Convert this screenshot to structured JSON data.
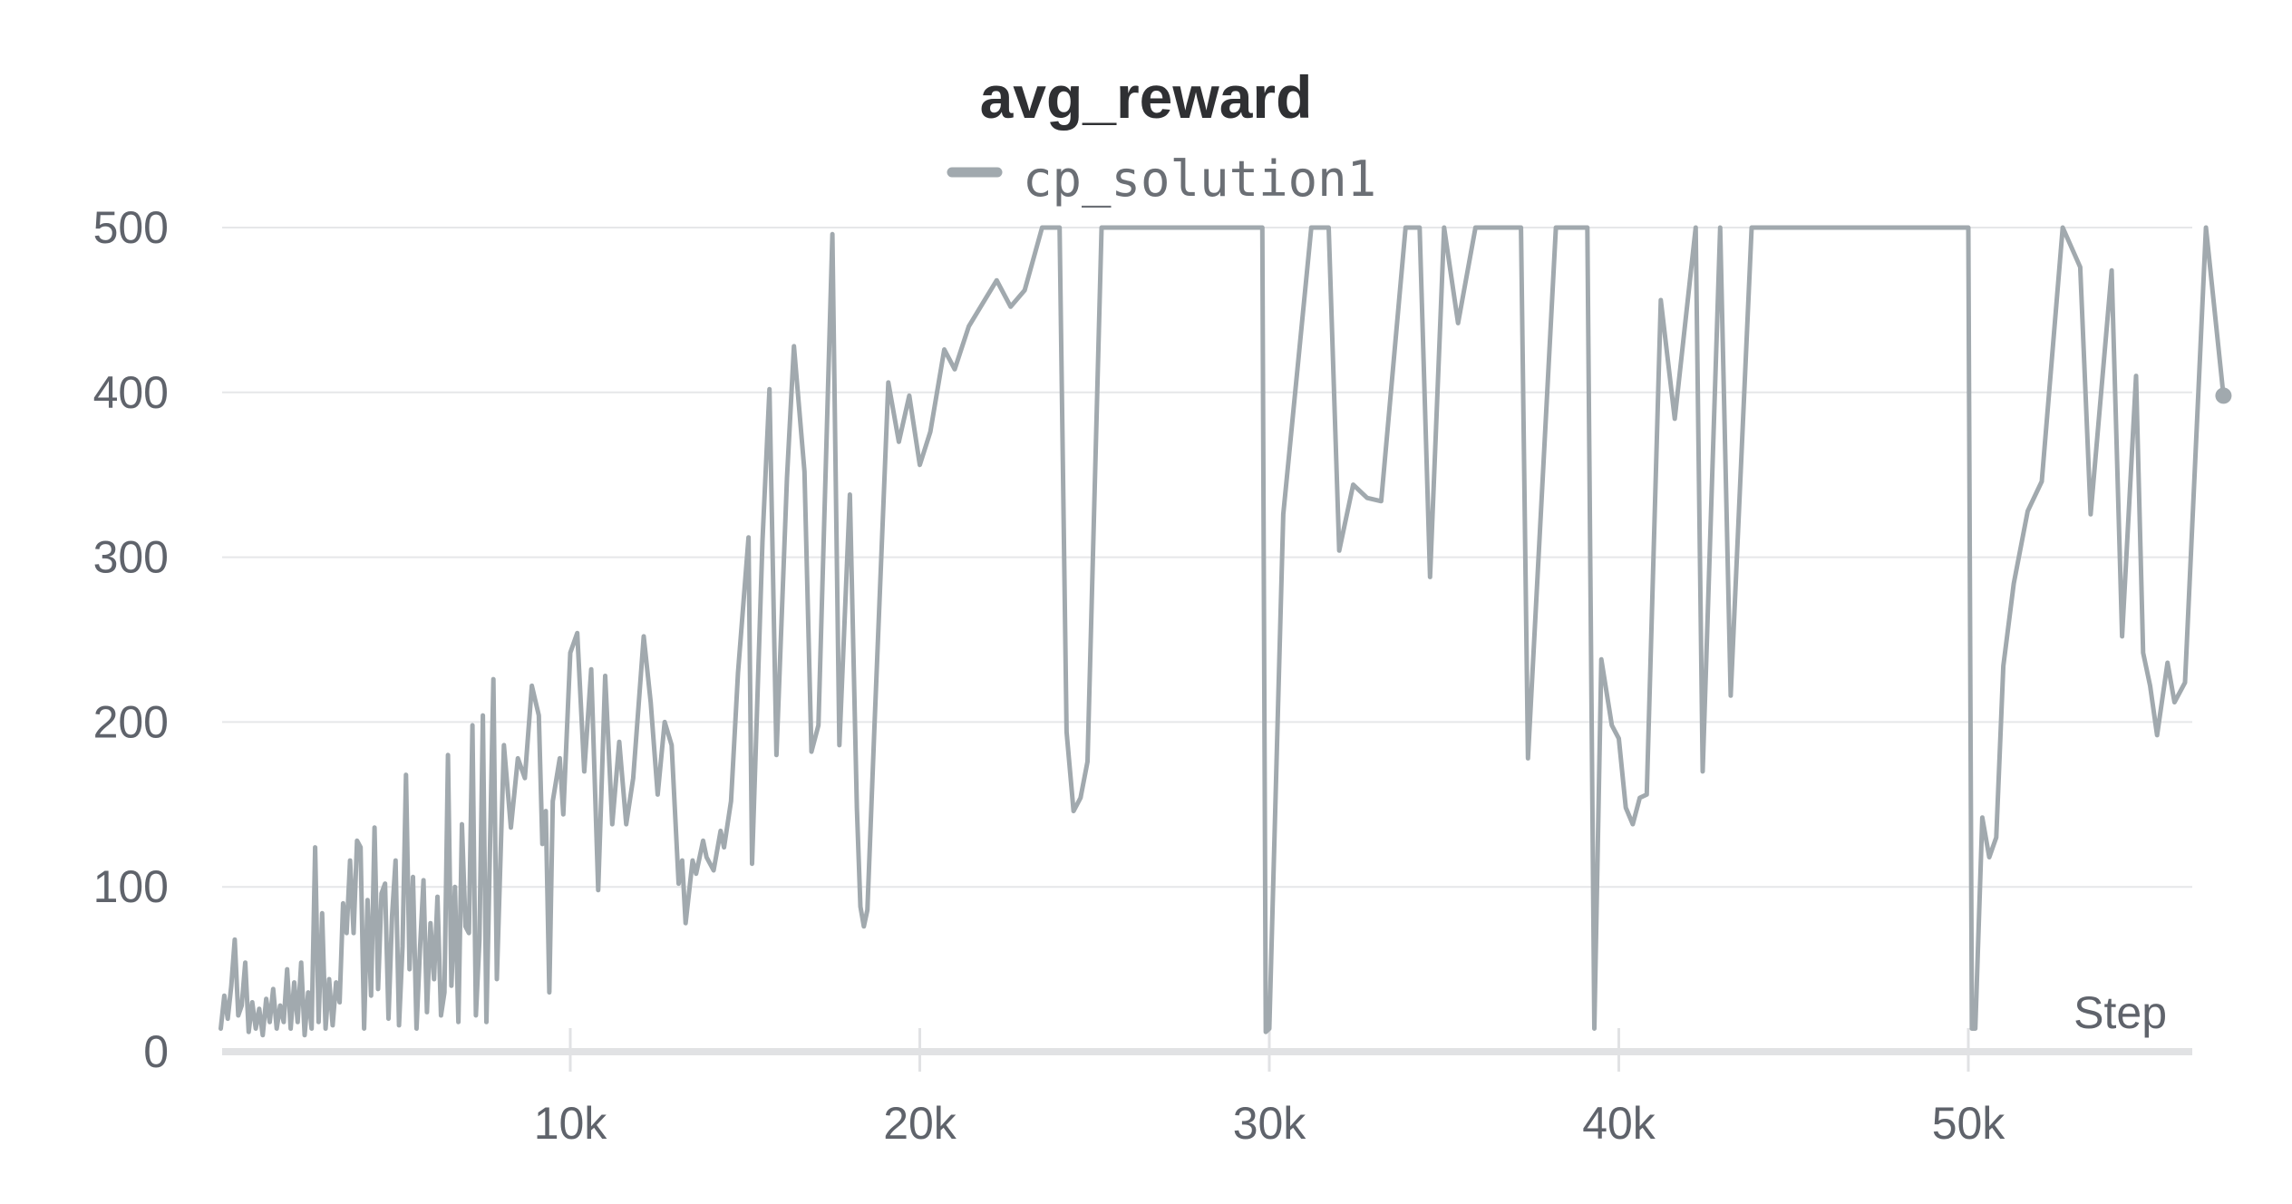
{
  "chart_data": {
    "type": "line",
    "title": "avg_reward",
    "xlabel": "Step",
    "ylabel": "",
    "xlim": [
      0,
      56500
    ],
    "ylim": [
      0,
      500
    ],
    "x_ticks": [
      10000,
      20000,
      30000,
      40000,
      50000
    ],
    "x_tick_labels": [
      "10k",
      "20k",
      "30k",
      "40k",
      "50k"
    ],
    "y_ticks": [
      0,
      100,
      200,
      300,
      400,
      500
    ],
    "y_tick_labels": [
      "0",
      "100",
      "200",
      "300",
      "400",
      "500"
    ],
    "grid": true,
    "legend_position": "top-center",
    "colors": {
      "series": "#a1a9ae",
      "grid": "#e6e7e9",
      "axis": "#e1e2e4",
      "tick_text": "#5f636b",
      "title": "#2f3033"
    },
    "series": [
      {
        "name": "cp_solution1",
        "points": [
          [
            0,
            14
          ],
          [
            100,
            34
          ],
          [
            200,
            20
          ],
          [
            300,
            40
          ],
          [
            400,
            68
          ],
          [
            500,
            22
          ],
          [
            600,
            28
          ],
          [
            700,
            54
          ],
          [
            800,
            12
          ],
          [
            900,
            30
          ],
          [
            1000,
            14
          ],
          [
            1100,
            26
          ],
          [
            1200,
            10
          ],
          [
            1300,
            32
          ],
          [
            1400,
            18
          ],
          [
            1500,
            38
          ],
          [
            1600,
            14
          ],
          [
            1700,
            28
          ],
          [
            1800,
            18
          ],
          [
            1900,
            50
          ],
          [
            2000,
            14
          ],
          [
            2100,
            42
          ],
          [
            2200,
            18
          ],
          [
            2300,
            54
          ],
          [
            2400,
            10
          ],
          [
            2500,
            36
          ],
          [
            2600,
            14
          ],
          [
            2700,
            124
          ],
          [
            2800,
            18
          ],
          [
            2900,
            84
          ],
          [
            3000,
            14
          ],
          [
            3100,
            44
          ],
          [
            3200,
            16
          ],
          [
            3300,
            42
          ],
          [
            3400,
            30
          ],
          [
            3500,
            90
          ],
          [
            3600,
            72
          ],
          [
            3700,
            116
          ],
          [
            3800,
            72
          ],
          [
            3900,
            128
          ],
          [
            4000,
            124
          ],
          [
            4100,
            14
          ],
          [
            4200,
            92
          ],
          [
            4300,
            34
          ],
          [
            4400,
            136
          ],
          [
            4500,
            38
          ],
          [
            4600,
            96
          ],
          [
            4700,
            102
          ],
          [
            4800,
            20
          ],
          [
            4900,
            82
          ],
          [
            5000,
            116
          ],
          [
            5100,
            16
          ],
          [
            5200,
            64
          ],
          [
            5300,
            168
          ],
          [
            5400,
            50
          ],
          [
            5500,
            106
          ],
          [
            5600,
            14
          ],
          [
            5700,
            62
          ],
          [
            5800,
            104
          ],
          [
            5900,
            24
          ],
          [
            6000,
            78
          ],
          [
            6100,
            44
          ],
          [
            6200,
            94
          ],
          [
            6300,
            22
          ],
          [
            6400,
            36
          ],
          [
            6500,
            180
          ],
          [
            6600,
            40
          ],
          [
            6700,
            100
          ],
          [
            6800,
            18
          ],
          [
            6900,
            138
          ],
          [
            7000,
            76
          ],
          [
            7100,
            72
          ],
          [
            7200,
            198
          ],
          [
            7300,
            22
          ],
          [
            7400,
            68
          ],
          [
            7500,
            204
          ],
          [
            7600,
            18
          ],
          [
            7700,
            120
          ],
          [
            7800,
            226
          ],
          [
            7900,
            44
          ],
          [
            8100,
            186
          ],
          [
            8300,
            136
          ],
          [
            8500,
            178
          ],
          [
            8700,
            166
          ],
          [
            8900,
            222
          ],
          [
            9100,
            204
          ],
          [
            9200,
            126
          ],
          [
            9300,
            146
          ],
          [
            9400,
            36
          ],
          [
            9500,
            152
          ],
          [
            9700,
            178
          ],
          [
            9800,
            144
          ],
          [
            10000,
            242
          ],
          [
            10200,
            254
          ],
          [
            10400,
            170
          ],
          [
            10600,
            232
          ],
          [
            10800,
            98
          ],
          [
            11000,
            228
          ],
          [
            11200,
            138
          ],
          [
            11400,
            188
          ],
          [
            11600,
            138
          ],
          [
            11800,
            166
          ],
          [
            12100,
            252
          ],
          [
            12300,
            212
          ],
          [
            12500,
            156
          ],
          [
            12700,
            200
          ],
          [
            12900,
            186
          ],
          [
            13100,
            102
          ],
          [
            13200,
            116
          ],
          [
            13300,
            78
          ],
          [
            13500,
            116
          ],
          [
            13600,
            108
          ],
          [
            13800,
            128
          ],
          [
            13900,
            118
          ],
          [
            14100,
            110
          ],
          [
            14300,
            134
          ],
          [
            14400,
            124
          ],
          [
            14600,
            152
          ],
          [
            14800,
            230
          ],
          [
            15100,
            312
          ],
          [
            15200,
            114
          ],
          [
            15500,
            310
          ],
          [
            15700,
            402
          ],
          [
            15900,
            180
          ],
          [
            16200,
            348
          ],
          [
            16400,
            428
          ],
          [
            16700,
            352
          ],
          [
            16900,
            182
          ],
          [
            17100,
            198
          ],
          [
            17500,
            496
          ],
          [
            17700,
            186
          ],
          [
            18000,
            338
          ],
          [
            18200,
            148
          ],
          [
            18300,
            88
          ],
          [
            18400,
            76
          ],
          [
            18500,
            86
          ],
          [
            18700,
            196
          ],
          [
            19100,
            406
          ],
          [
            19400,
            370
          ],
          [
            19700,
            398
          ],
          [
            20000,
            356
          ],
          [
            20300,
            376
          ],
          [
            20700,
            426
          ],
          [
            21000,
            414
          ],
          [
            21400,
            440
          ],
          [
            21800,
            454
          ],
          [
            22200,
            468
          ],
          [
            22600,
            452
          ],
          [
            23000,
            462
          ],
          [
            23500,
            500
          ],
          [
            24000,
            500
          ],
          [
            24200,
            194
          ],
          [
            24400,
            146
          ],
          [
            24600,
            154
          ],
          [
            24800,
            176
          ],
          [
            25200,
            500
          ],
          [
            29800,
            500
          ],
          [
            29900,
            12
          ],
          [
            30000,
            14
          ],
          [
            30400,
            326
          ],
          [
            31200,
            500
          ],
          [
            31700,
            500
          ],
          [
            32000,
            304
          ],
          [
            32400,
            344
          ],
          [
            32800,
            336
          ],
          [
            33200,
            334
          ],
          [
            33900,
            500
          ],
          [
            34300,
            500
          ],
          [
            34600,
            288
          ],
          [
            35000,
            500
          ],
          [
            35400,
            442
          ],
          [
            35900,
            500
          ],
          [
            37200,
            500
          ],
          [
            37400,
            178
          ],
          [
            38200,
            500
          ],
          [
            39100,
            500
          ],
          [
            39300,
            14
          ],
          [
            39500,
            238
          ],
          [
            39800,
            198
          ],
          [
            40000,
            190
          ],
          [
            40200,
            148
          ],
          [
            40400,
            138
          ],
          [
            40600,
            154
          ],
          [
            40800,
            156
          ],
          [
            41200,
            456
          ],
          [
            41600,
            384
          ],
          [
            42200,
            500
          ],
          [
            42400,
            170
          ],
          [
            42900,
            500
          ],
          [
            43200,
            216
          ],
          [
            43800,
            500
          ],
          [
            50000,
            500
          ],
          [
            50100,
            14
          ],
          [
            50200,
            14
          ],
          [
            50400,
            142
          ],
          [
            50600,
            118
          ],
          [
            50800,
            130
          ],
          [
            51000,
            234
          ],
          [
            51300,
            284
          ],
          [
            51700,
            328
          ],
          [
            52100,
            346
          ],
          [
            52700,
            500
          ],
          [
            53200,
            476
          ],
          [
            53500,
            326
          ],
          [
            54100,
            474
          ],
          [
            54400,
            252
          ],
          [
            54800,
            410
          ],
          [
            55000,
            242
          ],
          [
            55200,
            222
          ],
          [
            55400,
            192
          ],
          [
            55700,
            236
          ],
          [
            55900,
            212
          ],
          [
            56200,
            224
          ],
          [
            56800,
            500
          ],
          [
            57300,
            398
          ]
        ]
      }
    ]
  }
}
